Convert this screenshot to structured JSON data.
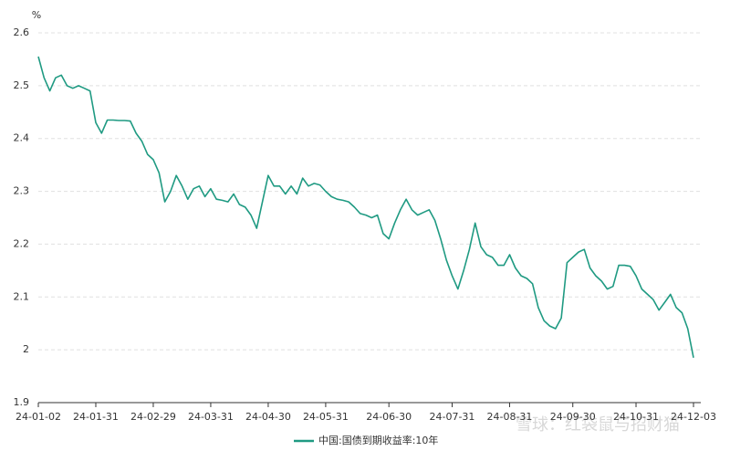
{
  "chart_data": {
    "type": "line",
    "y_label": "%",
    "watermark": "雪球：红袋鼠与招财猫",
    "categories": [
      "24-01-02",
      null,
      null,
      null,
      null,
      null,
      null,
      null,
      null,
      null,
      "24-01-31",
      null,
      null,
      null,
      null,
      null,
      null,
      null,
      null,
      null,
      "24-02-29",
      null,
      null,
      null,
      null,
      null,
      null,
      null,
      null,
      null,
      "24-03-31",
      null,
      null,
      null,
      null,
      null,
      null,
      null,
      null,
      null,
      "24-04-30",
      null,
      null,
      null,
      null,
      null,
      null,
      null,
      null,
      null,
      "24-05-31",
      null,
      null,
      null,
      null,
      null,
      null,
      null,
      null,
      null,
      null,
      "24-06-30",
      null,
      null,
      null,
      null,
      null,
      null,
      null,
      null,
      null,
      null,
      "24-07-31",
      null,
      null,
      null,
      null,
      null,
      null,
      null,
      null,
      null,
      "24-08-31",
      null,
      null,
      null,
      null,
      null,
      null,
      null,
      null,
      null,
      null,
      "24-09-30",
      null,
      null,
      null,
      null,
      null,
      null,
      null,
      null,
      null,
      null,
      "24-10-31",
      null,
      null,
      null,
      null,
      null,
      null,
      null,
      null,
      null,
      "24-12-03"
    ],
    "series": [
      {
        "name": "中国:国债到期收益率:10年",
        "color": "#1f9a82",
        "values": [
          2.555,
          2.515,
          2.49,
          2.515,
          2.52,
          2.5,
          2.495,
          2.5,
          2.495,
          2.49,
          2.43,
          2.41,
          2.435,
          2.435,
          2.434,
          2.434,
          2.433,
          2.41,
          2.395,
          2.37,
          2.36,
          2.335,
          2.28,
          2.3,
          2.33,
          2.31,
          2.285,
          2.305,
          2.31,
          2.29,
          2.305,
          2.285,
          2.283,
          2.28,
          2.295,
          2.275,
          2.27,
          2.255,
          2.23,
          2.28,
          2.33,
          2.31,
          2.31,
          2.295,
          2.31,
          2.295,
          2.325,
          2.31,
          2.315,
          2.312,
          2.3,
          2.29,
          2.285,
          2.283,
          2.28,
          2.27,
          2.258,
          2.255,
          2.25,
          2.255,
          2.22,
          2.21,
          2.24,
          2.265,
          2.285,
          2.265,
          2.255,
          2.26,
          2.265,
          2.245,
          2.21,
          2.17,
          2.14,
          2.115,
          2.15,
          2.19,
          2.24,
          2.195,
          2.18,
          2.175,
          2.16,
          2.16,
          2.18,
          2.155,
          2.14,
          2.135,
          2.125,
          2.08,
          2.055,
          2.045,
          2.04,
          2.06,
          2.165,
          2.175,
          2.185,
          2.19,
          2.155,
          2.14,
          2.13,
          2.115,
          2.12,
          2.16,
          2.16,
          2.158,
          2.14,
          2.115,
          2.105,
          2.095,
          2.075,
          2.09,
          2.105,
          2.08,
          2.07,
          2.04,
          1.985
        ]
      }
    ],
    "ylim": [
      1.9,
      2.6
    ],
    "yticks": [
      1.9,
      2,
      2.1,
      2.2,
      2.3,
      2.4,
      2.5,
      2.6
    ],
    "grid": true
  }
}
